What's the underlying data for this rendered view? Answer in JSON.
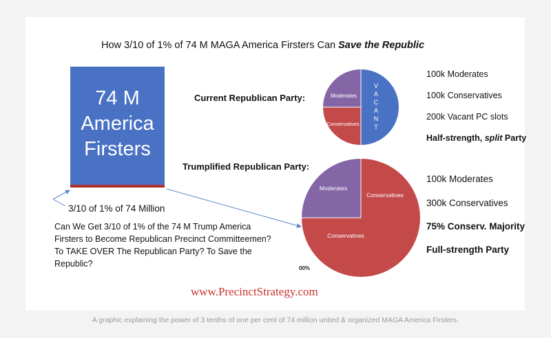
{
  "title": {
    "prefix": "How 3/10 of 1% of 74 M MAGA America Firsters Can ",
    "emphasis": "Save the Republic"
  },
  "big_box": {
    "line1": "74 M",
    "line2": "America",
    "line3": "Firsters"
  },
  "fraction_label": "3/10 of 1% of 74 Million",
  "current_party": {
    "label": "Current Republican Party:",
    "pie": {
      "moderates": "Moderates",
      "conservatives": "Conservatives",
      "vacant": "VACANT"
    },
    "legend": [
      "100k Moderates",
      "100k Conservatives",
      "200k Vacant PC slots"
    ],
    "summary_prefix": "Half-strength, ",
    "summary_emphasis": "split",
    "summary_suffix": " Party"
  },
  "trumplified_party": {
    "label": "Trumplified Republican Party:",
    "pie": {
      "moderates": "Moderates",
      "conservatives_top": "Conservatives",
      "conservatives_main": "Conservatives",
      "corner": "00%"
    },
    "legend": [
      "100k Moderates",
      "300k Conservatives"
    ],
    "bold_legend": [
      "75% Conserv. Majority",
      "Full-strength Party"
    ]
  },
  "questions": {
    "q1": "Can We Get 3/10 of 1% of the 74 M Trump America Firsters to Become Republican Precinct Committeemen?",
    "q2": "To TAKE OVER The Republican Party?  To Save the Republic?"
  },
  "website": "www.PrecinctStrategy.com",
  "caption": "A graphic explaining the power of 3 tenths of one per cent of 74 million united & organized MAGA America Firsters.",
  "colors": {
    "blue": "#4a72c4",
    "red": "#c44a4a",
    "purple": "#8466a6",
    "url_red": "#c8322d"
  }
}
